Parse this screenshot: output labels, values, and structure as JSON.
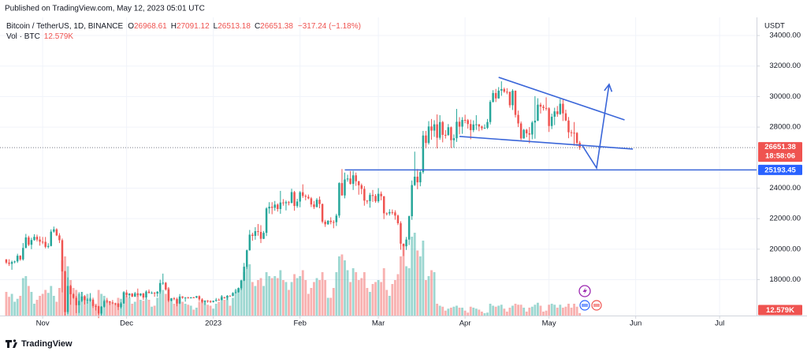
{
  "header": "Published on TradingView.com, May 12, 2023 05:01 UTC",
  "footer_brand": "TradingView",
  "chart_data": {
    "type": "candlestick",
    "title": "Bitcoin / TetherUS, 1D, BINANCE",
    "ohlc_letters": [
      "O",
      "H",
      "L",
      "C"
    ],
    "change_label": "−317.24 (−1.18%)",
    "y_unit": "USDT",
    "last_price_countdown": "18:58:06",
    "up_color": "#26a69a",
    "down_color": "#ef5350",
    "drawing_color": "#3a66d9",
    "grid": true,
    "xlim": [
      -2.25,
      268.2
    ],
    "xticks": [
      {
        "value": 13,
        "label": "Nov"
      },
      {
        "value": 43,
        "label": "Dec"
      },
      {
        "value": 74,
        "label": "2023"
      },
      {
        "value": 105,
        "label": "Feb"
      },
      {
        "value": 133,
        "label": "Mar"
      },
      {
        "value": 164,
        "label": "Apr"
      },
      {
        "value": 194,
        "label": "May"
      },
      {
        "value": 225,
        "label": "Jun"
      },
      {
        "value": 255,
        "label": "Jul"
      }
    ],
    "ylim": [
      15650,
      35190
    ],
    "yticks": [
      {
        "value": 18000,
        "label": "18000.00"
      },
      {
        "value": 20000,
        "label": "20000.00"
      },
      {
        "value": 22000,
        "label": "22000.00"
      },
      {
        "value": 24000,
        "label": "24000.00"
      },
      {
        "value": 28000,
        "label": "28000.00"
      },
      {
        "value": 30000,
        "label": "30000.00"
      },
      {
        "value": 32000,
        "label": "32000.00"
      },
      {
        "value": 34000,
        "label": "34000.00"
      }
    ],
    "open": [
      19330,
      19120,
      19040,
      19160,
      19200,
      19570,
      19330,
      20080,
      20770,
      20290,
      20600,
      20810,
      20630,
      20490,
      20480,
      20150,
      20210,
      21150,
      21300,
      20900,
      20590,
      18540,
      15880,
      17590,
      17050,
      16810,
      16330,
      16610,
      16900,
      16660,
      16690,
      16700,
      16280,
      16260,
      15780,
      16230,
      16600,
      16590,
      16510,
      16460,
      16430,
      16210,
      16440,
      17160,
      16980,
      17090,
      16890,
      17110,
      16970,
      17090,
      16830,
      17220,
      17130,
      17140,
      17090,
      17210,
      17780,
      17800,
      17360,
      16630,
      16780,
      16740,
      16440,
      16900,
      16820,
      16830,
      16780,
      16840,
      16830,
      16920,
      16710,
      16550,
      16630,
      16600,
      16540,
      16620,
      16680,
      16670,
      16850,
      16830,
      16950,
      16940,
      17130,
      17180,
      17440,
      17940,
      18850,
      19930,
      20950,
      20870,
      21180,
      21130,
      20680,
      21070,
      22670,
      22780,
      22710,
      22920,
      22630,
      23060,
      23010,
      23080,
      23030,
      23740,
      22830,
      23120,
      23730,
      23490,
      23430,
      23330,
      22930,
      22760,
      23240,
      22960,
      21800,
      21630,
      21860,
      21780,
      21770,
      22200,
      24330,
      23520,
      24570,
      24630,
      24280,
      24840,
      24450,
      24190,
      23950,
      23180,
      23150,
      23550,
      23490,
      23140,
      23630,
      23470,
      22350,
      22340,
      22430,
      22410,
      22200,
      21700,
      20360,
      20190,
      20630,
      22160,
      24200,
      24750,
      24380,
      25050,
      27450,
      26960,
      28040,
      27770,
      28180,
      27300,
      28330,
      27490,
      27480,
      27990,
      27140,
      27270,
      28350,
      28030,
      28470,
      28450,
      28200,
      27800,
      28170,
      28180,
      28040,
      27920,
      27950,
      28330,
      29650,
      30230,
      29880,
      30390,
      30490,
      30320,
      30310,
      29430,
      30380,
      28800,
      28240,
      27260,
      27820,
      27590,
      27510,
      28300,
      28420,
      29470,
      29340,
      29250,
      29230,
      28070,
      28680,
      29030,
      28850,
      29530,
      28900,
      28430,
      27660,
      27630,
      27620,
      26968.61
    ],
    "high": [
      19350,
      19340,
      19250,
      19250,
      19700,
      19600,
      20400,
      21000,
      20880,
      20750,
      20980,
      20950,
      20840,
      20800,
      20800,
      20390,
      21300,
      21480,
      21370,
      21050,
      20700,
      18590,
      18150,
      17660,
      17120,
      16930,
      17180,
      17200,
      17000,
      16790,
      17120,
      16820,
      16340,
      16290,
      16270,
      16700,
      16810,
      16600,
      16670,
      16490,
      16480,
      16530,
      17250,
      17330,
      17110,
      17120,
      17200,
      17420,
      17110,
      17140,
      17300,
      17360,
      17230,
      17190,
      17250,
      18000,
      18400,
      17850,
      17520,
      16800,
      16860,
      16830,
      17060,
      16920,
      16860,
      16880,
      16860,
      16870,
      16940,
      16970,
      16790,
      16650,
      16660,
      16650,
      16630,
      16800,
      16770,
      16990,
      16880,
      16990,
      16970,
      17180,
      17400,
      17490,
      18000,
      19100,
      19970,
      21260,
      21080,
      21440,
      21650,
      21570,
      21190,
      22750,
      23080,
      23080,
      23160,
      23000,
      23820,
      23280,
      23190,
      23160,
      23960,
      23820,
      23300,
      23810,
      24250,
      23590,
      23580,
      23420,
      23160,
      23350,
      23450,
      22990,
      21920,
      21900,
      22090,
      21900,
      22320,
      24380,
      25250,
      25020,
      24880,
      25120,
      25130,
      25020,
      24480,
      24300,
      24130,
      23220,
      23690,
      23880,
      23610,
      24000,
      23780,
      23480,
      22410,
      22620,
      22600,
      22550,
      22270,
      21830,
      20370,
      20800,
      22200,
      24500,
      26390,
      25250,
      25200,
      27750,
      27750,
      28390,
      28530,
      28450,
      28830,
      28780,
      28400,
      27800,
      28200,
      28040,
      27520,
      29190,
      28650,
      28650,
      28810,
      28530,
      28490,
      28440,
      28780,
      28200,
      28100,
      28180,
      28530,
      29770,
      30420,
      30500,
      30620,
      31000,
      30590,
      30550,
      30320,
      30480,
      30400,
      29080,
      28370,
      27880,
      27890,
      28000,
      28400,
      30030,
      29890,
      29600,
      29460,
      29950,
      29300,
      28880,
      29270,
      29380,
      29840,
      29850,
      29140,
      28660,
      27820,
      28330,
      27670,
      27091.12
    ],
    "low": [
      19030,
      18900,
      18650,
      19070,
      19100,
      19240,
      19250,
      20060,
      20200,
      20000,
      20550,
      20500,
      20230,
      20330,
      20050,
      20050,
      20180,
      21080,
      20860,
      20400,
      17170,
      15590,
      15750,
      16360,
      16750,
      15810,
      15820,
      16530,
      16380,
      16430,
      16560,
      16150,
      15980,
      15480,
      15600,
      16170,
      16460,
      16340,
      16400,
      16320,
      16010,
      16110,
      16430,
      16850,
      16790,
      16860,
      16870,
      16880,
      16910,
      16680,
      16730,
      17090,
      17070,
      16880,
      16880,
      17080,
      17660,
      17280,
      16530,
      16580,
      16650,
      16260,
      16400,
      16750,
      16560,
      16770,
      16780,
      16800,
      16790,
      16590,
      16460,
      16340,
      16490,
      16470,
      16500,
      16550,
      16630,
      16650,
      16750,
      16670,
      16910,
      16910,
      17100,
      17150,
      17320,
      17910,
      18710,
      19900,
      20550,
      20620,
      20880,
      20400,
      20660,
      20860,
      22330,
      22290,
      22520,
      22460,
      22320,
      22850,
      22540,
      22870,
      23000,
      22520,
      22710,
      22750,
      23360,
      23200,
      23270,
      22760,
      22630,
      22740,
      22680,
      21690,
      21460,
      21600,
      21630,
      21370,
      21520,
      22050,
      23510,
      23330,
      24420,
      24230,
      23880,
      24150,
      23570,
      23600,
      22850,
      22970,
      22720,
      23100,
      23040,
      23030,
      23200,
      21970,
      22210,
      22200,
      22260,
      21930,
      21580,
      19960,
      19550,
      19950,
      20270,
      21920,
      24140,
      23930,
      24120,
      24940,
      26600,
      26850,
      27170,
      27360,
      26600,
      27170,
      27000,
      27250,
      27430,
      26630,
      26640,
      27030,
      27520,
      27560,
      28250,
      27900,
      27200,
      27670,
      27820,
      27730,
      27790,
      27880,
      27870,
      28170,
      29610,
      29640,
      29860,
      30050,
      30240,
      30150,
      29270,
      29120,
      28630,
      28000,
      27140,
      27240,
      27330,
      26940,
      27200,
      27240,
      28390,
      28890,
      29080,
      29080,
      27680,
      27870,
      28130,
      28670,
      28800,
      28400,
      28390,
      27270,
      27370,
      26780,
      26760,
      26513.18
    ],
    "close": [
      19120,
      19040,
      19160,
      19200,
      19570,
      19330,
      20080,
      20770,
      20290,
      20600,
      20810,
      20630,
      20490,
      20480,
      20150,
      20210,
      21150,
      21300,
      20900,
      20590,
      18540,
      15880,
      17590,
      17050,
      16810,
      16330,
      16610,
      16900,
      16660,
      16690,
      16700,
      16280,
      16260,
      15780,
      16230,
      16600,
      16590,
      16510,
      16460,
      16430,
      16210,
      16440,
      17160,
      16980,
      17090,
      16890,
      17110,
      16970,
      17090,
      16830,
      17220,
      17130,
      17140,
      17090,
      17210,
      17780,
      17800,
      17360,
      16630,
      16780,
      16740,
      16440,
      16900,
      16820,
      16830,
      16780,
      16840,
      16830,
      16920,
      16710,
      16550,
      16630,
      16600,
      16540,
      16620,
      16680,
      16670,
      16850,
      16830,
      16950,
      16940,
      17130,
      17180,
      17440,
      17940,
      18850,
      19930,
      20950,
      20870,
      21180,
      21130,
      20680,
      21070,
      22670,
      22780,
      22710,
      22920,
      22630,
      23060,
      23010,
      23080,
      23030,
      23740,
      22830,
      23120,
      23730,
      23490,
      23430,
      23330,
      22930,
      22760,
      23240,
      22960,
      21800,
      21630,
      21860,
      21780,
      21770,
      22200,
      24330,
      23520,
      24570,
      24630,
      24280,
      24840,
      24450,
      24190,
      23950,
      23180,
      23150,
      23550,
      23490,
      23140,
      23630,
      23470,
      22350,
      22340,
      22430,
      22410,
      22200,
      21700,
      20360,
      20190,
      20630,
      22160,
      24200,
      24750,
      24380,
      25050,
      27450,
      26960,
      28040,
      27770,
      28180,
      27300,
      28330,
      27490,
      27480,
      27990,
      27140,
      27270,
      28350,
      28030,
      28470,
      28450,
      28200,
      27800,
      28170,
      28180,
      28040,
      27920,
      27950,
      28330,
      29650,
      30230,
      29880,
      30390,
      30490,
      30320,
      30310,
      29430,
      30380,
      28800,
      28240,
      27260,
      27820,
      27590,
      27510,
      28300,
      28420,
      29470,
      29340,
      29250,
      29230,
      28070,
      28680,
      29030,
      28850,
      29530,
      28900,
      28430,
      27660,
      27630,
      27620,
      26968.61,
      26651.38
    ],
    "volume": {
      "name": "Vol · BTC",
      "last_value_label": "12.579K",
      "ylim": [
        0,
        480000
      ],
      "values": [
        120000,
        95000,
        110000,
        70000,
        85000,
        100000,
        190000,
        200000,
        150000,
        120000,
        60000,
        80000,
        100000,
        110000,
        130000,
        115000,
        150000,
        100000,
        70000,
        140000,
        280000,
        300000,
        250000,
        180000,
        140000,
        130000,
        110000,
        120000,
        100000,
        110000,
        90000,
        70000,
        60000,
        130000,
        110000,
        100000,
        80000,
        70000,
        65000,
        60000,
        90000,
        85000,
        120000,
        100000,
        90000,
        60000,
        70000,
        100000,
        80000,
        75000,
        85000,
        80000,
        45000,
        50000,
        90000,
        120000,
        130000,
        110000,
        140000,
        80000,
        60000,
        80000,
        90000,
        70000,
        60000,
        55000,
        50000,
        30000,
        40000,
        70000,
        80000,
        70000,
        55000,
        50000,
        35000,
        60000,
        70000,
        100000,
        80000,
        95000,
        50000,
        90000,
        130000,
        140000,
        180000,
        220000,
        250000,
        260000,
        170000,
        150000,
        180000,
        190000,
        150000,
        220000,
        200000,
        190000,
        200000,
        190000,
        230000,
        180000,
        170000,
        130000,
        170000,
        210000,
        190000,
        200000,
        230000,
        180000,
        110000,
        140000,
        170000,
        190000,
        180000,
        220000,
        180000,
        90000,
        90000,
        140000,
        220000,
        300000,
        310000,
        280000,
        230000,
        170000,
        240000,
        220000,
        180000,
        190000,
        220000,
        140000,
        120000,
        160000,
        170000,
        180000,
        170000,
        240000,
        130000,
        100000,
        160000,
        180000,
        210000,
        300000,
        360000,
        250000,
        240000,
        400000,
        420000,
        330000,
        300000,
        380000,
        180000,
        200000,
        230000,
        220000,
        60000,
        50000,
        45000,
        25000,
        35000,
        40000,
        45000,
        50000,
        40000,
        40000,
        25000,
        15000,
        45000,
        40000,
        35000,
        30000,
        20000,
        12000,
        15000,
        60000,
        50000,
        45000,
        50000,
        55000,
        35000,
        20000,
        40000,
        50000,
        60000,
        55000,
        55000,
        40000,
        20000,
        40000,
        45000,
        55000,
        65000,
        50000,
        20000,
        25000,
        55000,
        60000,
        55000,
        40000,
        55000,
        40000,
        45000,
        60000,
        40000,
        60000,
        45000,
        12579
      ]
    },
    "hline": {
      "value": 25193.45,
      "from": 121
    },
    "trendlines": [
      {
        "x": [
          176,
          221
        ],
        "y": [
          31260,
          28470
        ]
      },
      {
        "x": [
          162,
          224
        ],
        "y": [
          27390,
          26560
        ]
      },
      {
        "x": [
          206,
          211,
          215.5
        ],
        "y": [
          26770,
          25320,
          30800
        ]
      }
    ]
  }
}
